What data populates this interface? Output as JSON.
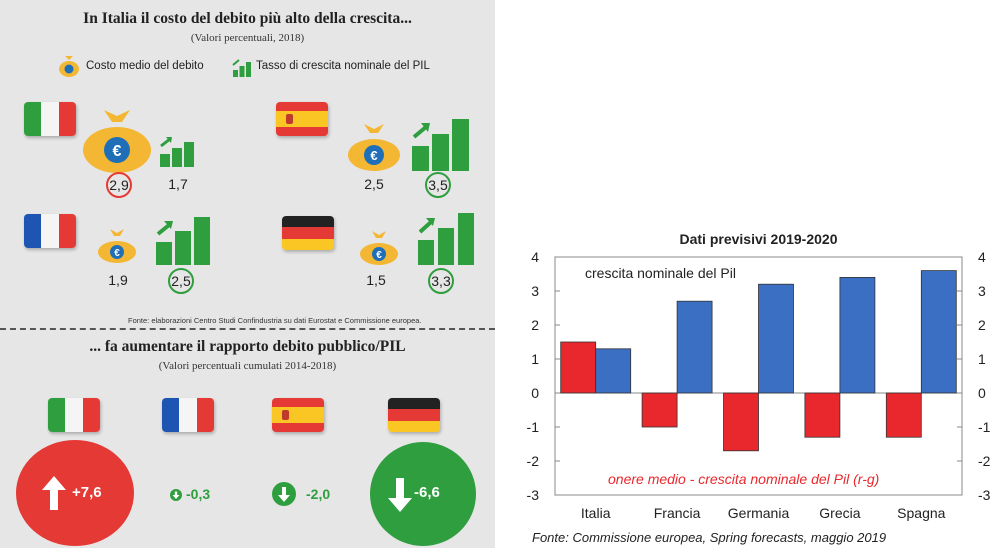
{
  "left_panel": {
    "title1": "In Italia il costo del debito più alto della crescita...",
    "subtitle1": "(Valori percentuali, 2018)",
    "legend_debt": "Costo medio del debito",
    "legend_growth": "Tasso di crescita nominale del PIL",
    "source_note": "Fonte: elaborazioni Centro Studi Confindustria su dati Eurostat e Commissione europea.",
    "title2": "... fa aumentare il rapporto debito pubblico/PIL",
    "subtitle2": "(Valori percentuali cumulati 2014-2018)",
    "countries": [
      {
        "debt": "2,9",
        "growth": "1,7",
        "highlight": "debt"
      },
      {
        "debt": "2,5",
        "growth": "3,5",
        "highlight": "growth"
      },
      {
        "debt": "1,9",
        "growth": "2,5",
        "highlight": "growth"
      },
      {
        "debt": "1,5",
        "growth": "3,3",
        "highlight": "growth"
      }
    ],
    "ratio_changes": [
      "+7,6",
      "-0,3",
      "-2,0",
      "-6,6"
    ],
    "colors": {
      "red": "#e53935",
      "green": "#2e9e3e",
      "gold": "#f4b733"
    }
  },
  "chart_data": {
    "type": "bar",
    "title": "Dati previsivi 2019-2020",
    "categories": [
      "Italia",
      "Francia",
      "Germania",
      "Grecia",
      "Spagna"
    ],
    "series": [
      {
        "name": "onere medio - crescita nominale del Pil (r-g)",
        "values": [
          1.5,
          -1.0,
          -1.7,
          -1.3,
          -1.3
        ],
        "color": "#e8282d"
      },
      {
        "name": "crescita nominale del Pil",
        "values": [
          1.3,
          2.7,
          3.2,
          3.4,
          3.6
        ],
        "color": "#3a6fc4"
      }
    ],
    "ylim": [
      -3,
      4
    ],
    "yticks": [
      "4",
      "3",
      "2",
      "1",
      "0",
      "-1",
      "-2",
      "-3"
    ],
    "grid": false,
    "source": "Fonte: Commissione europea, Spring forecasts, maggio 2019"
  }
}
